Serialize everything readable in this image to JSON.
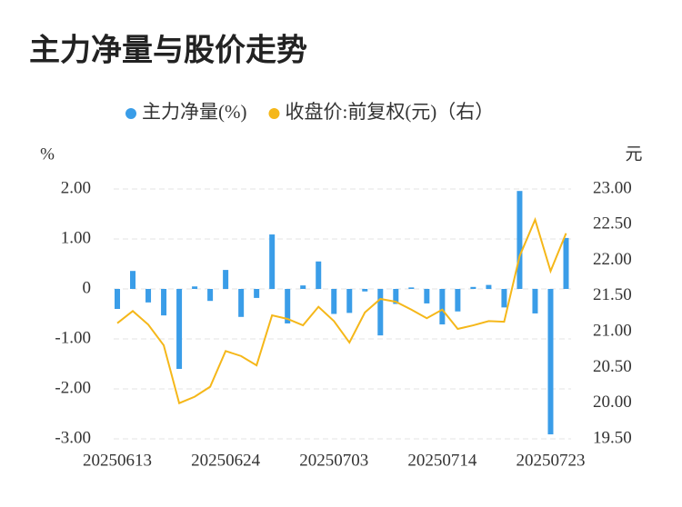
{
  "chart_data": {
    "type": "bar",
    "title": "主力净量与股价走势",
    "y_label": "%",
    "y2_label": "元",
    "categories": [
      "20250613",
      null,
      null,
      null,
      null,
      null,
      null,
      "20250624",
      null,
      null,
      null,
      null,
      null,
      null,
      "20250703",
      null,
      null,
      null,
      null,
      null,
      null,
      "20250714",
      null,
      null,
      null,
      null,
      null,
      null,
      "20250723",
      null
    ],
    "series": [
      {
        "name": "主力净量(%)",
        "type": "bar",
        "color": "#3a9de8",
        "values": [
          -0.4,
          0.36,
          -0.27,
          -0.53,
          -1.6,
          0.05,
          -0.24,
          0.38,
          -0.56,
          -0.18,
          1.09,
          -0.69,
          0.07,
          0.55,
          -0.5,
          -0.48,
          -0.05,
          -0.93,
          -0.3,
          0.03,
          -0.29,
          -0.71,
          -0.45,
          0.04,
          0.08,
          -0.37,
          1.96,
          -0.49,
          -2.91,
          1.02
        ]
      },
      {
        "name": "收盘价:前复权(元)（右）",
        "type": "line",
        "axis": "y2",
        "color": "#f5b719",
        "values": [
          21.12,
          21.29,
          21.1,
          20.81,
          20.0,
          20.09,
          20.23,
          20.73,
          20.66,
          20.53,
          21.23,
          21.18,
          21.09,
          21.35,
          21.15,
          20.85,
          21.27,
          21.46,
          21.42,
          21.31,
          21.19,
          21.31,
          21.04,
          21.09,
          21.15,
          21.14,
          22.06,
          22.57,
          21.85,
          22.38
        ]
      }
    ],
    "ylim": [
      -3,
      2
    ],
    "yticks": [
      {
        "value": -3,
        "label": "-3.00"
      },
      {
        "value": -2,
        "label": "-2.00"
      },
      {
        "value": -1,
        "label": "-1.00"
      },
      0,
      {
        "value": 1,
        "label": "1.00"
      },
      {
        "value": 2,
        "label": "2.00"
      }
    ],
    "y2lim": [
      19.5,
      23
    ],
    "y2ticks": [
      {
        "value": 19.5,
        "label": "19.50"
      },
      {
        "value": 20,
        "label": "20.00"
      },
      {
        "value": 20.5,
        "label": "20.50"
      },
      {
        "value": 21,
        "label": "21.00"
      },
      {
        "value": 21.5,
        "label": "21.50"
      },
      {
        "value": 22,
        "label": "22.00"
      },
      {
        "value": 22.5,
        "label": "22.50"
      },
      {
        "value": 23,
        "label": "23.00"
      }
    ],
    "grid": true
  }
}
